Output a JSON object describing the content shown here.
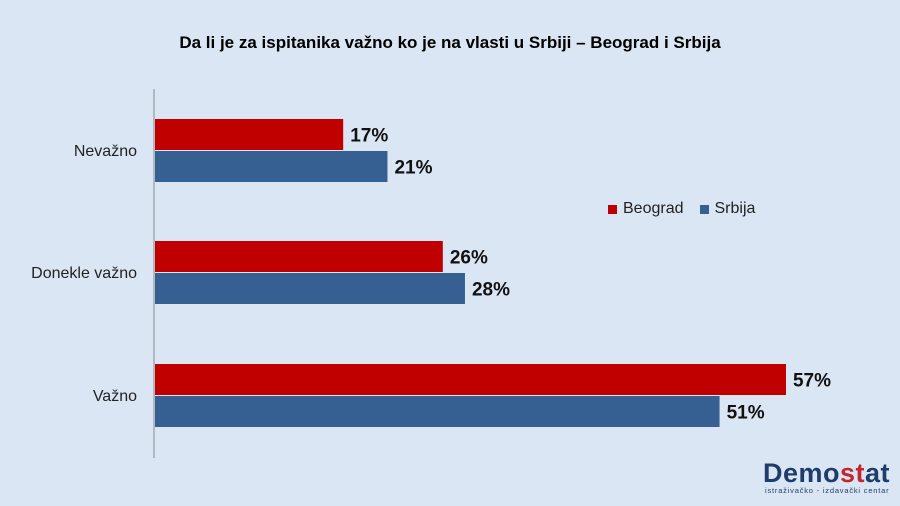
{
  "chart_data": {
    "type": "bar",
    "orientation": "horizontal",
    "title": "Da li je za ispitanika važno ko je na vlasti u Srbiji – Beograd i Srbija",
    "categories": [
      "Nevažno",
      "Donekle važno",
      "Važno"
    ],
    "series": [
      {
        "name": "Beograd",
        "values": [
          17,
          26,
          57
        ],
        "labels": [
          "17%",
          "26%",
          "57%"
        ],
        "color": "#c00000"
      },
      {
        "name": "Srbija",
        "values": [
          21,
          28,
          51
        ],
        "labels": [
          "21%",
          "28%",
          "51%"
        ],
        "color": "#376092"
      }
    ],
    "xlim": [
      0,
      60
    ],
    "grid": false,
    "legend_position": "right"
  },
  "logo": {
    "name_part1": "Demo",
    "name_part2": "st",
    "name_part3": "at",
    "tagline": "istraživačko - izdavački centar"
  }
}
